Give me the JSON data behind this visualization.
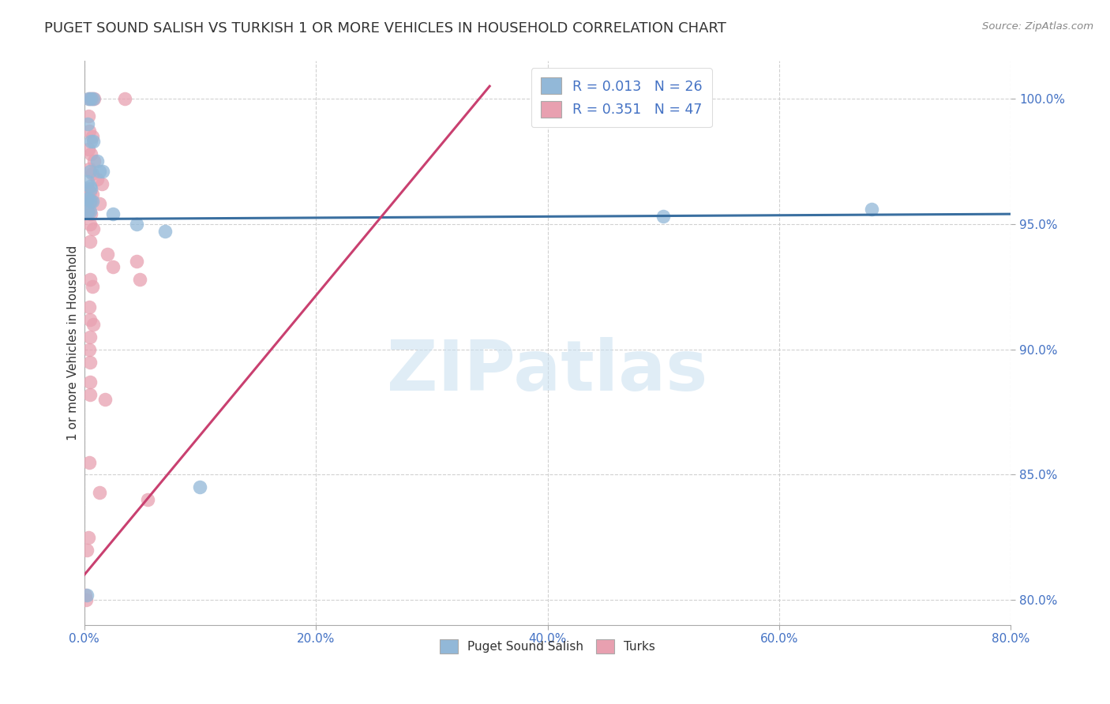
{
  "title": "PUGET SOUND SALISH VS TURKISH 1 OR MORE VEHICLES IN HOUSEHOLD CORRELATION CHART",
  "source": "Source: ZipAtlas.com",
  "xlabel_bottom": [
    "Puget Sound Salish",
    "Turks"
  ],
  "ylabel": "1 or more Vehicles in Household",
  "xlim": [
    0.0,
    80.0
  ],
  "ylim": [
    79.0,
    101.5
  ],
  "yticks": [
    80.0,
    85.0,
    90.0,
    95.0,
    100.0
  ],
  "xticks": [
    0.0,
    20.0,
    40.0,
    60.0,
    80.0
  ],
  "R_blue": 0.013,
  "N_blue": 26,
  "R_pink": 0.351,
  "N_pink": 47,
  "blue_color": "#92b8d8",
  "pink_color": "#e8a0b0",
  "blue_line_color": "#3a6fa0",
  "pink_line_color": "#c94070",
  "blue_scatter": [
    [
      0.35,
      100.0
    ],
    [
      0.55,
      100.0
    ],
    [
      0.75,
      100.0
    ],
    [
      0.3,
      99.0
    ],
    [
      0.6,
      98.3
    ],
    [
      0.75,
      98.3
    ],
    [
      1.1,
      97.5
    ],
    [
      0.5,
      97.1
    ],
    [
      1.3,
      97.1
    ],
    [
      1.6,
      97.1
    ],
    [
      0.3,
      96.7
    ],
    [
      0.5,
      96.5
    ],
    [
      0.6,
      96.4
    ],
    [
      0.2,
      96.0
    ],
    [
      0.35,
      96.0
    ],
    [
      0.5,
      95.9
    ],
    [
      0.7,
      95.9
    ],
    [
      0.3,
      95.5
    ],
    [
      0.5,
      95.5
    ],
    [
      2.5,
      95.4
    ],
    [
      4.5,
      95.0
    ],
    [
      7.0,
      94.7
    ],
    [
      50.0,
      95.3
    ],
    [
      68.0,
      95.6
    ],
    [
      10.0,
      84.5
    ],
    [
      0.2,
      80.2
    ]
  ],
  "pink_scatter": [
    [
      0.45,
      100.0
    ],
    [
      0.65,
      100.0
    ],
    [
      0.85,
      100.0
    ],
    [
      3.5,
      100.0
    ],
    [
      0.35,
      99.3
    ],
    [
      0.4,
      98.7
    ],
    [
      0.7,
      98.5
    ],
    [
      0.35,
      98.0
    ],
    [
      0.6,
      97.8
    ],
    [
      0.85,
      97.5
    ],
    [
      0.4,
      97.2
    ],
    [
      0.7,
      97.0
    ],
    [
      1.1,
      96.8
    ],
    [
      1.5,
      96.6
    ],
    [
      0.3,
      96.4
    ],
    [
      0.5,
      96.3
    ],
    [
      0.7,
      96.2
    ],
    [
      0.4,
      96.0
    ],
    [
      0.6,
      95.9
    ],
    [
      1.3,
      95.8
    ],
    [
      0.35,
      95.5
    ],
    [
      0.55,
      95.4
    ],
    [
      0.5,
      95.0
    ],
    [
      0.8,
      94.8
    ],
    [
      0.5,
      94.3
    ],
    [
      2.0,
      93.8
    ],
    [
      2.5,
      93.3
    ],
    [
      0.5,
      92.8
    ],
    [
      0.7,
      92.5
    ],
    [
      0.4,
      91.7
    ],
    [
      0.5,
      91.2
    ],
    [
      0.8,
      91.0
    ],
    [
      0.5,
      90.5
    ],
    [
      4.5,
      93.5
    ],
    [
      4.8,
      92.8
    ],
    [
      0.4,
      90.0
    ],
    [
      0.5,
      89.5
    ],
    [
      0.5,
      88.7
    ],
    [
      0.5,
      88.2
    ],
    [
      1.8,
      88.0
    ],
    [
      0.45,
      85.5
    ],
    [
      1.3,
      84.3
    ],
    [
      5.5,
      84.0
    ],
    [
      0.35,
      82.5
    ],
    [
      0.2,
      82.0
    ],
    [
      0.1,
      80.2
    ],
    [
      0.15,
      80.0
    ]
  ],
  "blue_line_x": [
    0.0,
    80.0
  ],
  "blue_line_y": [
    95.2,
    95.4
  ],
  "pink_line_x": [
    0.0,
    35.0
  ],
  "pink_line_y": [
    81.0,
    100.5
  ]
}
